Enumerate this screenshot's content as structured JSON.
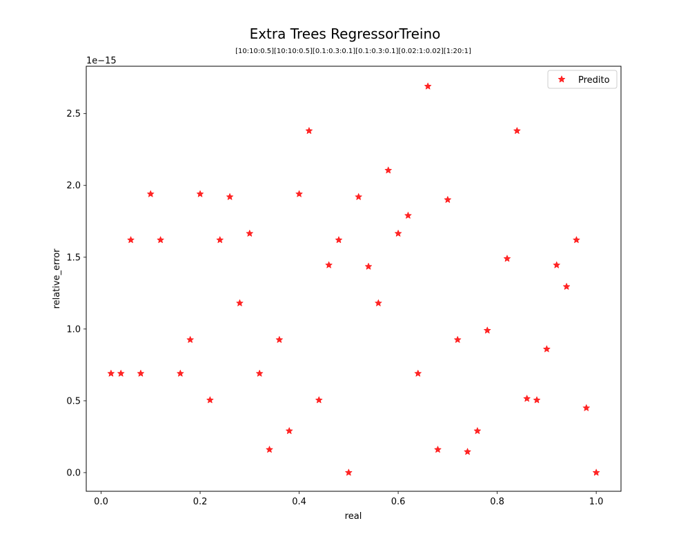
{
  "chart_data": {
    "type": "scatter",
    "title": "Extra Trees RegressorTreino",
    "subtitle": "[10:10:0.5][10:10:0.5][0.1:0.3:0.1][0.1:0.3:0.1][0.02:1:0.02][1:20:1]",
    "xlabel": "real",
    "ylabel": "relative_error",
    "y_offset_label": "1e−15",
    "xlim": [
      -0.03,
      1.05
    ],
    "ylim": [
      -0.13,
      2.83
    ],
    "xticks": [
      0.0,
      0.2,
      0.4,
      0.6,
      0.8,
      1.0
    ],
    "xtick_labels": [
      "0.0",
      "0.2",
      "0.4",
      "0.6",
      "0.8",
      "1.0"
    ],
    "yticks": [
      0.0,
      0.5,
      1.0,
      1.5,
      2.0,
      2.5
    ],
    "ytick_labels": [
      "0.0",
      "0.5",
      "1.0",
      "1.5",
      "2.0",
      "2.5"
    ],
    "legend_position": "top-right",
    "grid": false,
    "series": [
      {
        "name": "Predito",
        "color": "#ff0000",
        "marker": "star",
        "x": [
          0.02,
          0.04,
          0.06,
          0.08,
          0.1,
          0.12,
          0.16,
          0.18,
          0.2,
          0.22,
          0.24,
          0.26,
          0.28,
          0.3,
          0.32,
          0.34,
          0.36,
          0.38,
          0.4,
          0.42,
          0.44,
          0.46,
          0.48,
          0.5,
          0.52,
          0.54,
          0.56,
          0.58,
          0.6,
          0.62,
          0.64,
          0.66,
          0.68,
          0.7,
          0.72,
          0.74,
          0.76,
          0.78,
          0.82,
          0.84,
          0.86,
          0.88,
          0.9,
          0.92,
          0.94,
          0.96,
          0.98,
          1.0
        ],
        "y": [
          0.69,
          0.69,
          1.62,
          0.69,
          1.94,
          1.62,
          0.69,
          0.925,
          1.94,
          0.505,
          1.62,
          1.92,
          1.18,
          1.665,
          0.69,
          0.16,
          0.925,
          0.29,
          1.94,
          2.38,
          0.505,
          1.445,
          1.62,
          0.0,
          1.92,
          1.435,
          1.18,
          2.105,
          1.665,
          1.79,
          0.69,
          2.69,
          0.16,
          1.9,
          0.925,
          0.145,
          0.29,
          0.99,
          1.49,
          2.38,
          0.515,
          0.505,
          0.86,
          1.445,
          1.295,
          1.62,
          0.45,
          0.0
        ]
      }
    ]
  }
}
